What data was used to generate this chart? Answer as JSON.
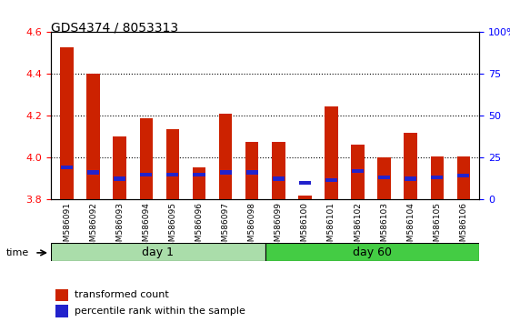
{
  "title": "GDS4374 / 8053313",
  "samples": [
    "GSM586091",
    "GSM586092",
    "GSM586093",
    "GSM586094",
    "GSM586095",
    "GSM586096",
    "GSM586097",
    "GSM586098",
    "GSM586099",
    "GSM586100",
    "GSM586101",
    "GSM586102",
    "GSM586103",
    "GSM586104",
    "GSM586105",
    "GSM586106"
  ],
  "red_values_all": [
    4.53,
    4.4,
    4.1,
    4.19,
    4.135,
    3.955,
    4.21,
    4.075,
    4.075,
    3.82,
    4.245,
    4.065,
    4.0,
    4.12,
    4.005,
    4.005
  ],
  "blue_values": [
    3.955,
    3.93,
    3.9,
    3.92,
    3.92,
    3.92,
    3.93,
    3.93,
    3.9,
    3.88,
    3.895,
    3.935,
    3.905,
    3.9,
    3.905,
    3.915
  ],
  "y_min": 3.8,
  "y_max": 4.6,
  "y_ticks": [
    3.8,
    4.0,
    4.2,
    4.4,
    4.6
  ],
  "y2_ticks": [
    0,
    25,
    50,
    75,
    100
  ],
  "bar_color": "#cc2200",
  "blue_color": "#2222cc",
  "day1_color": "#aaddaa",
  "day60_color": "#44cc44",
  "day1_label": "day 1",
  "day60_label": "day 60",
  "day1_samples": 8,
  "day60_samples": 8,
  "xlabel_time": "time",
  "legend_red": "transformed count",
  "legend_blue": "percentile rank within the sample"
}
